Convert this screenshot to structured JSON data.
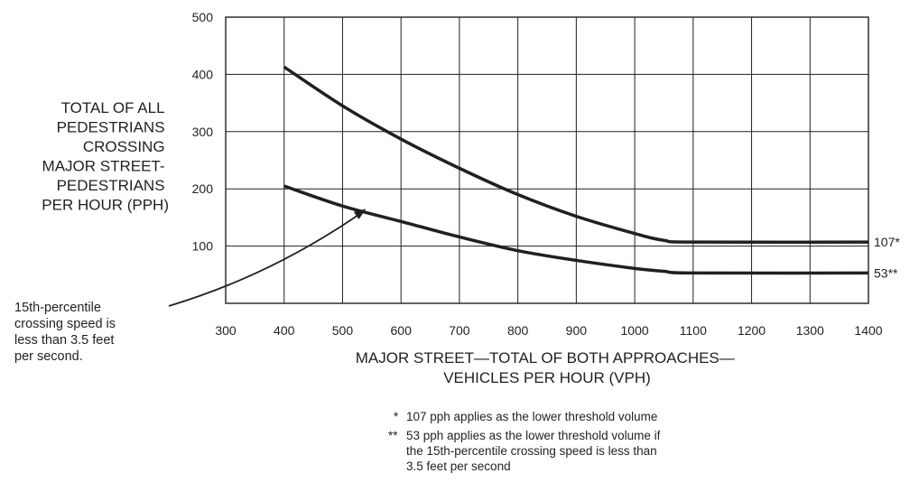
{
  "chart_data": {
    "type": "line",
    "xlim": [
      300,
      1400
    ],
    "ylim": [
      0,
      500
    ],
    "x_ticks": [
      300,
      400,
      500,
      600,
      700,
      800,
      900,
      1000,
      1100,
      1200,
      1300,
      1400
    ],
    "y_ticks": [
      100,
      200,
      300,
      400,
      500
    ],
    "grid": true,
    "ylabel_lines": [
      "TOTAL OF ALL",
      "PEDESTRIANS",
      "CROSSING",
      "MAJOR STREET-",
      "PEDESTRIANS",
      "PER HOUR (PPH)"
    ],
    "xlabel_lines": [
      "MAJOR STREET—TOTAL OF BOTH APPROACHES—",
      "VEHICLES PER HOUR (VPH)"
    ],
    "series": [
      {
        "end_label": "107*",
        "points": [
          [
            400,
            413
          ],
          [
            500,
            345
          ],
          [
            600,
            287
          ],
          [
            700,
            236
          ],
          [
            800,
            190
          ],
          [
            900,
            152
          ],
          [
            1000,
            122
          ],
          [
            1050,
            110
          ],
          [
            1100,
            107
          ],
          [
            1400,
            107
          ]
        ]
      },
      {
        "end_label": "53**",
        "points": [
          [
            400,
            205
          ],
          [
            500,
            170
          ],
          [
            600,
            143
          ],
          [
            700,
            116
          ],
          [
            800,
            92
          ],
          [
            900,
            75
          ],
          [
            1000,
            61
          ],
          [
            1050,
            56
          ],
          [
            1100,
            53
          ],
          [
            1400,
            53
          ]
        ]
      }
    ],
    "annotation": {
      "lines": [
        "15th-percentile",
        "crossing speed is",
        "less than 3.5 feet",
        "per second."
      ],
      "arrow_to": [
        540,
        165
      ]
    },
    "footnotes": [
      {
        "marker": "*",
        "lines": [
          "107 pph applies as the lower threshold volume"
        ]
      },
      {
        "marker": "**",
        "lines": [
          "53 pph applies as the lower threshold volume if",
          "the 15th-percentile crossing speed is less than",
          "3.5 feet per second"
        ]
      }
    ]
  }
}
